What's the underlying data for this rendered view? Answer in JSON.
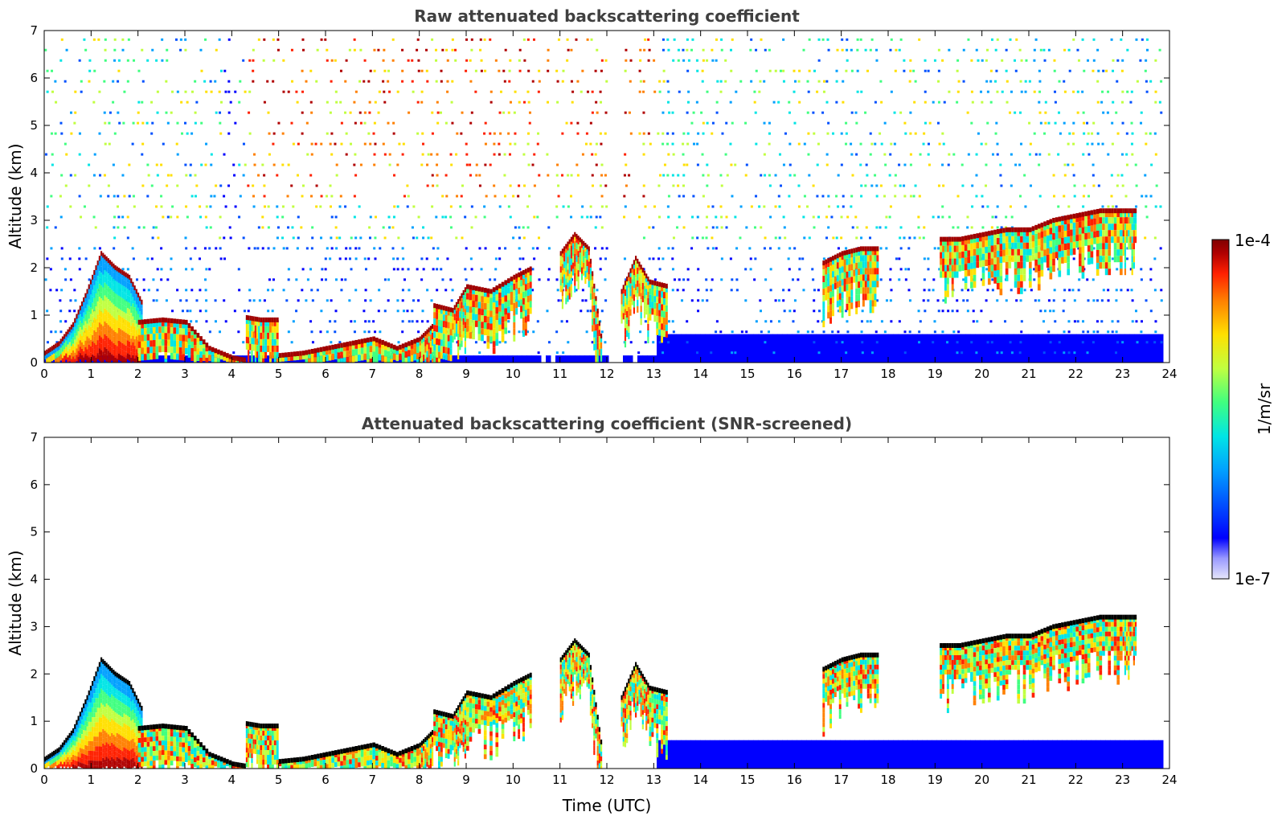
{
  "chart_data": [
    {
      "type": "heatmap",
      "title": "Raw attenuated backscattering coefficient",
      "xlabel": "",
      "ylabel": "Altitude (km)",
      "xlim": [
        0,
        24
      ],
      "ylim": [
        0,
        7
      ],
      "xticks": [
        "0",
        "1",
        "2",
        "3",
        "4",
        "5",
        "6",
        "7",
        "8",
        "9",
        "10",
        "11",
        "12",
        "13",
        "14",
        "15",
        "16",
        "17",
        "18",
        "19",
        "20",
        "21",
        "22",
        "23",
        "24"
      ],
      "yticks": [
        "0",
        "1",
        "2",
        "3",
        "4",
        "5",
        "6",
        "7"
      ],
      "grid": false,
      "colorscale": "jet (log)",
      "cloud_layers": [
        {
          "x": [
            0.0,
            0.3,
            0.6,
            0.9,
            1.2,
            1.5,
            1.8,
            2.1
          ],
          "y": [
            0.2,
            0.4,
            0.8,
            1.5,
            2.3,
            2.0,
            1.8,
            1.2
          ]
        },
        {
          "x": [
            2.0,
            2.5,
            3.0,
            3.5,
            4.0,
            4.3
          ],
          "y": [
            0.85,
            0.9,
            0.85,
            0.3,
            0.1,
            0.05
          ]
        },
        {
          "x": [
            4.3,
            4.6,
            5.0
          ],
          "y": [
            0.95,
            0.9,
            0.9
          ]
        },
        {
          "x": [
            5.0,
            5.5,
            6.0,
            6.5,
            7.0,
            7.5,
            8.0,
            8.3
          ],
          "y": [
            0.15,
            0.2,
            0.3,
            0.4,
            0.5,
            0.3,
            0.5,
            0.8
          ]
        },
        {
          "x": [
            8.3,
            8.7,
            9.0,
            9.5,
            10.0,
            10.4
          ],
          "y": [
            1.2,
            1.1,
            1.6,
            1.5,
            1.8,
            2.0
          ]
        },
        {
          "x": [
            11.0,
            11.3,
            11.6,
            11.9
          ],
          "y": [
            2.3,
            2.7,
            2.4,
            0.3
          ]
        },
        {
          "x": [
            12.3,
            12.6,
            12.9,
            13.3
          ],
          "y": [
            1.5,
            2.2,
            1.7,
            1.6
          ]
        },
        {
          "x": [
            16.6,
            17.0,
            17.4,
            17.8
          ],
          "y": [
            2.1,
            2.3,
            2.4,
            2.4
          ]
        },
        {
          "x": [
            19.1,
            19.5,
            20.0,
            20.5,
            21.0,
            21.5,
            22.0,
            22.5,
            23.0,
            23.3
          ],
          "y": [
            2.6,
            2.6,
            2.7,
            2.8,
            2.8,
            3.0,
            3.1,
            3.2,
            3.2,
            3.2
          ]
        }
      ],
      "data_gaps_utc": [
        [
          10.5,
          10.6
        ],
        [
          10.7,
          10.8
        ],
        [
          10.85,
          10.9
        ],
        [
          12.0,
          12.3
        ],
        [
          12.45,
          12.55
        ]
      ]
    },
    {
      "type": "heatmap",
      "title": "Attenuated backscattering coefficient (SNR-screened)",
      "xlabel": "Time (UTC)",
      "ylabel": "Altitude (km)",
      "xlim": [
        0,
        24
      ],
      "ylim": [
        0,
        7
      ],
      "xticks": [
        "0",
        "1",
        "2",
        "3",
        "4",
        "5",
        "6",
        "7",
        "8",
        "9",
        "10",
        "11",
        "12",
        "13",
        "14",
        "15",
        "16",
        "17",
        "18",
        "19",
        "20",
        "21",
        "22",
        "23",
        "24"
      ],
      "yticks": [
        "0",
        "1",
        "2",
        "3",
        "4",
        "5",
        "6",
        "7"
      ],
      "grid": false,
      "colorscale": "jet (log)"
    }
  ],
  "colorbar": {
    "label": "1/m/sr",
    "max_label": "1e-4",
    "min_label": "1e-7",
    "colors": [
      "#e6e6fa",
      "#9a9aff",
      "#0000ff",
      "#0050ff",
      "#00a0ff",
      "#00e5e5",
      "#40ff80",
      "#c0ff40",
      "#ffe000",
      "#ff8000",
      "#ff2000",
      "#b00000",
      "#800000"
    ]
  }
}
